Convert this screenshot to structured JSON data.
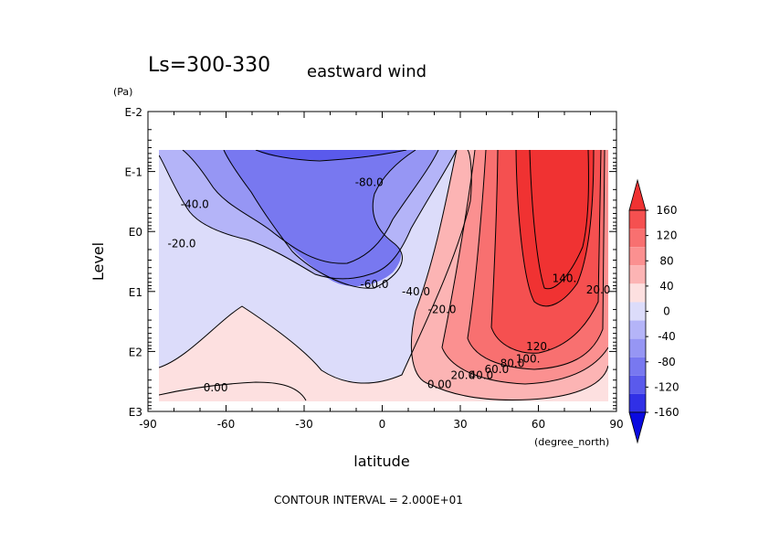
{
  "chart_data": {
    "type": "contour",
    "title": "Ls=300-330",
    "subtitle": "eastward wind",
    "xlabel": "latitude",
    "xunit": "(degree_north)",
    "ylabel": "Level",
    "yunit": "(Pa)",
    "x_ticks": [
      "-90",
      "-60",
      "-30",
      "0",
      "30",
      "60",
      "90"
    ],
    "y_ticks": [
      "E-2",
      "E-1",
      "E0",
      "E1",
      "E2",
      "E3"
    ],
    "xlim": [
      -90,
      90
    ],
    "ylim_log10": [
      -2,
      3
    ],
    "y_scale": "log",
    "contour_interval": 20,
    "footer": "CONTOUR INTERVAL = 2.000E+01",
    "colorbar": {
      "ticks": [
        "160",
        "120",
        "80",
        "40",
        "0",
        "-40",
        "-80",
        "-120",
        "-160"
      ],
      "colors": [
        "#f03232",
        "#f55050",
        "#f87070",
        "#fb9090",
        "#fcb4b4",
        "#fde0e0",
        "#dcdcfa",
        "#b4b4f8",
        "#9696f4",
        "#7878f0",
        "#5a5aec",
        "#3030e6",
        "#0a0ae0"
      ]
    },
    "contour_labels": [
      {
        "text": "-80.0",
        "x": -5,
        "y": -0.82
      },
      {
        "text": "-40.0",
        "x": -72,
        "y": -0.45
      },
      {
        "text": "-20.0",
        "x": -77,
        "y": 0.2
      },
      {
        "text": "-60.0",
        "x": -3,
        "y": 0.88
      },
      {
        "text": "-40.0",
        "x": 13,
        "y": 1.0
      },
      {
        "text": "-20.0",
        "x": 23,
        "y": 1.3
      },
      {
        "text": "0.00",
        "x": -64,
        "y": 2.6
      },
      {
        "text": "0.00",
        "x": 22,
        "y": 2.55
      },
      {
        "text": "20.0",
        "x": 31,
        "y": 2.4
      },
      {
        "text": "40.0",
        "x": 38,
        "y": 2.4
      },
      {
        "text": "60.0",
        "x": 44,
        "y": 2.3
      },
      {
        "text": "80.0",
        "x": 50,
        "y": 2.2
      },
      {
        "text": "100.",
        "x": 56,
        "y": 2.12
      },
      {
        "text": "120.",
        "x": 60,
        "y": 1.92
      },
      {
        "text": "140.",
        "x": 70,
        "y": 0.78
      },
      {
        "text": "20.0",
        "x": 83,
        "y": 0.97
      }
    ]
  }
}
